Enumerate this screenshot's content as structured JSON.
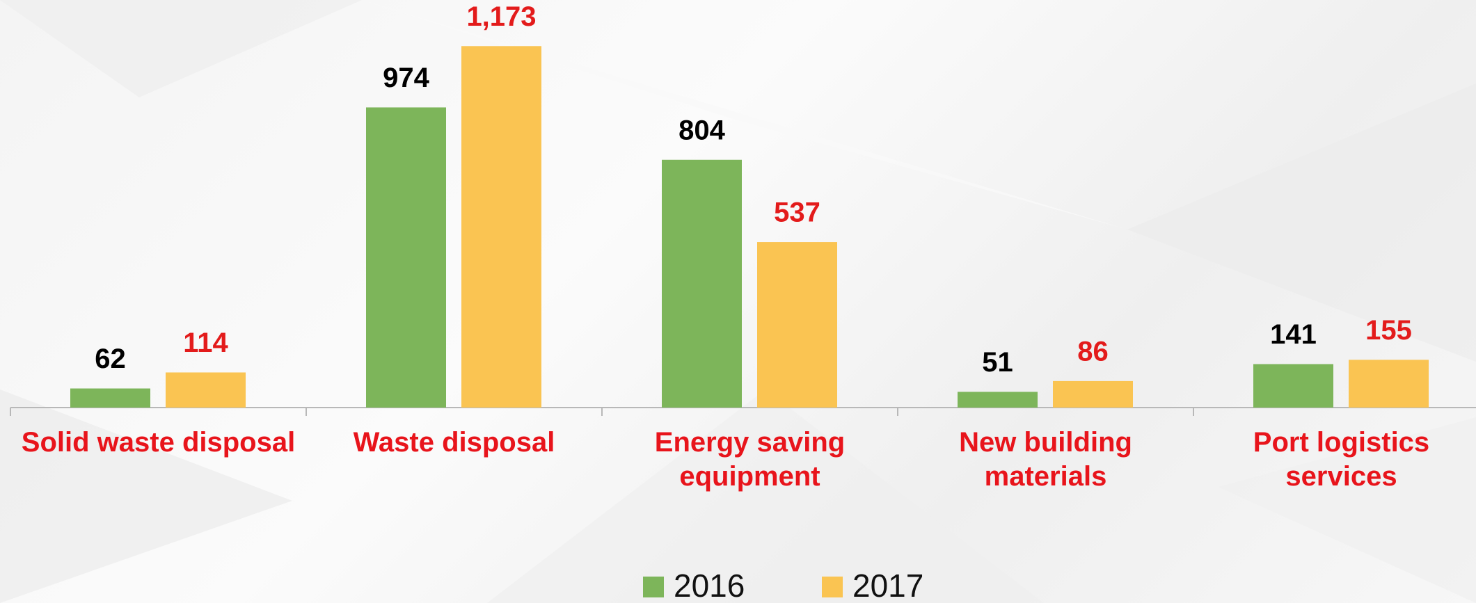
{
  "chart_data": {
    "type": "bar",
    "categories": [
      "Solid waste disposal",
      "Waste disposal",
      "Energy saving\nequipment",
      "New building\nmaterials",
      "Port logistics\nservices"
    ],
    "series": [
      {
        "name": "2016",
        "color": "#7db55a",
        "label_color": "#000000",
        "values": [
          62,
          974,
          804,
          51,
          141
        ]
      },
      {
        "name": "2017",
        "color": "#fac452",
        "label_color": "#e31b1b",
        "values": [
          114,
          1173,
          537,
          86,
          155
        ],
        "value_labels": [
          "114",
          "1,173",
          "537",
          "86",
          "155"
        ]
      }
    ],
    "ylim": [
      0,
      1300
    ],
    "legend": "bottom"
  }
}
